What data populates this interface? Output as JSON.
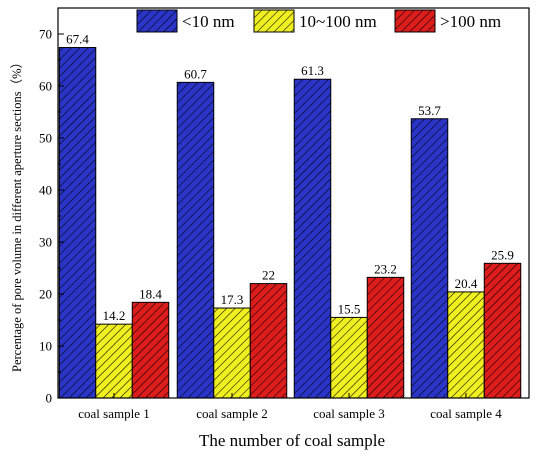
{
  "chart_data": {
    "type": "bar",
    "title": "",
    "xlabel": "The number of coal sample",
    "ylabel": "Percentage of pore volume in different aperture sections（%）",
    "ylim": [
      0,
      75
    ],
    "yticks": [
      "0",
      "10",
      "20",
      "30",
      "40",
      "50",
      "60",
      "70"
    ],
    "grid": false,
    "legend_position": "top",
    "categories": [
      "coal sample 1",
      "coal sample 2",
      "coal sample 3",
      "coal sample 4"
    ],
    "series": [
      {
        "name": "<10 nm",
        "values": [
          67.4,
          60.7,
          61.3,
          53.7
        ],
        "labels": [
          "67.4",
          "60.7",
          "61.3",
          "53.7"
        ],
        "color": "#2a35c8",
        "pattern": "hatch"
      },
      {
        "name": "10~100 nm",
        "values": [
          14.2,
          17.3,
          15.5,
          20.4
        ],
        "labels": [
          "14.2",
          "17.3",
          "15.5",
          "20.4"
        ],
        "color": "#f0f020",
        "pattern": "hatch"
      },
      {
        "name": ">100 nm",
        "values": [
          18.4,
          22,
          23.2,
          25.9
        ],
        "labels": [
          "18.4",
          "22",
          "23.2",
          "25.9"
        ],
        "color": "#dd1c1c",
        "pattern": "hatch"
      }
    ]
  }
}
